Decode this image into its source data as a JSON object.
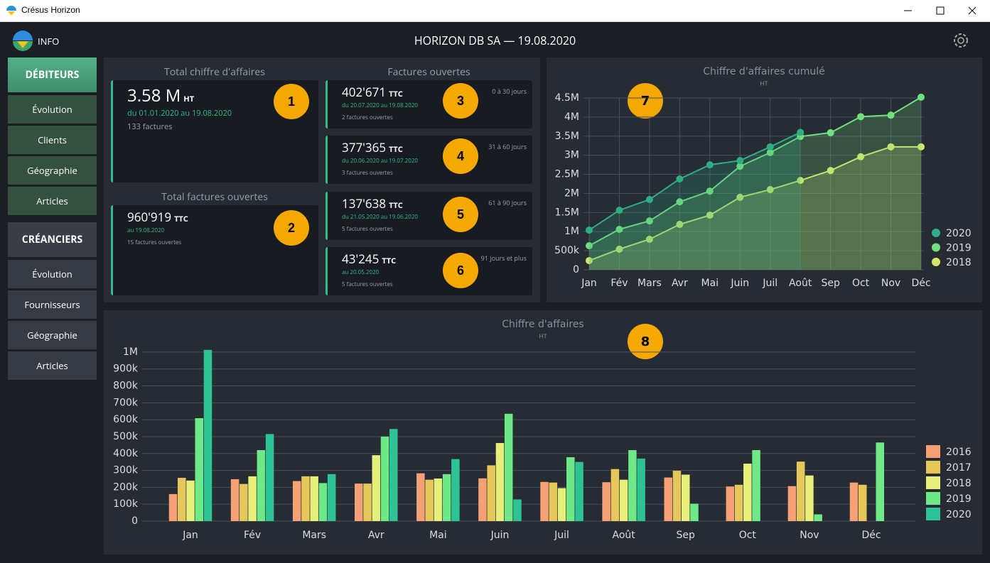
{
  "window": {
    "title": "Crésus Horizon"
  },
  "header": {
    "section": "INFO",
    "title": "HORIZON DB SA — 19.08.2020"
  },
  "sidebar": {
    "debiteurs": {
      "title": "DÉBITEURS",
      "items": [
        "Évolution",
        "Clients",
        "Géographie",
        "Articles"
      ]
    },
    "creanciers": {
      "title": "CRÉANCIERS",
      "items": [
        "Évolution",
        "Fournisseurs",
        "Géographie",
        "Articles"
      ]
    }
  },
  "summary": {
    "revenue": {
      "heading": "Total chiffre d'affaires",
      "amount": "3.58 M",
      "unit": "HT",
      "period": "du 01.01.2020 au 19.08.2020",
      "count": "133 factures",
      "badge": "1"
    },
    "open": {
      "heading": "Total factures ouvertes",
      "amount": "960'919",
      "unit": "TTC",
      "period": "au 19.08.2020",
      "count": "15 factures ouvertes",
      "badge": "2"
    }
  },
  "open_invoices": {
    "heading": "Factures ouvertes",
    "cards": [
      {
        "amount": "402'671",
        "unit": "TTC",
        "period": "du 20.07.2020 au 19.08.2020",
        "count": "2 factures ouvertes",
        "range": "0 à 30 jours",
        "badge": "3"
      },
      {
        "amount": "377'365",
        "unit": "TTC",
        "period": "du 20.06.2020 au 19.07.2020",
        "count": "3 factures ouvertes",
        "range": "31 à 60 jours",
        "badge": "4"
      },
      {
        "amount": "137'638",
        "unit": "TTC",
        "period": "du 21.05.2020 au 19.06.2020",
        "count": "5 factures ouvertes",
        "range": "61 à 90 jours",
        "badge": "5"
      },
      {
        "amount": "43'245",
        "unit": "TTC",
        "period": "au 20.05.2020",
        "count": "5 factures ouvertes",
        "range": "91 jours et plus",
        "badge": "6"
      }
    ]
  },
  "chart_data": [
    {
      "type": "line",
      "title": "Chiffre d'affaires cumulé",
      "subtitle": "HT",
      "annotation": "7",
      "categories": [
        "Jan",
        "Fév",
        "Mars",
        "Avr",
        "Mai",
        "Juin",
        "Juil",
        "Août",
        "Sep",
        "Oct",
        "Nov",
        "Déc"
      ],
      "series": [
        {
          "name": "2020",
          "color": "#2fae84",
          "values": [
            1040000,
            1560000,
            1840000,
            2380000,
            2750000,
            2860000,
            3220000,
            3600000,
            null,
            null,
            null,
            null
          ]
        },
        {
          "name": "2019",
          "color": "#72e07e",
          "values": [
            630000,
            1060000,
            1280000,
            1780000,
            2060000,
            2710000,
            3070000,
            3490000,
            3590000,
            4010000,
            4050000,
            4520000
          ]
        },
        {
          "name": "2018",
          "color": "#d8e56c",
          "values": [
            240000,
            540000,
            800000,
            1190000,
            1430000,
            1900000,
            2100000,
            2340000,
            2600000,
            2960000,
            3220000,
            3220000
          ]
        }
      ],
      "ylim": [
        0,
        4600000
      ],
      "yticks": [
        0,
        {
          "value": 500000,
          "label": "500k"
        },
        {
          "value": 1000000,
          "label": "1M"
        },
        {
          "value": 1500000,
          "label": "1.5M"
        },
        {
          "value": 2000000,
          "label": "2M"
        },
        {
          "value": 2500000,
          "label": "2.5M"
        },
        {
          "value": 3000000,
          "label": "3M"
        },
        {
          "value": 3500000,
          "label": "3.5M"
        },
        {
          "value": 4000000,
          "label": "4M"
        },
        {
          "value": 4500000,
          "label": "4.5M"
        }
      ],
      "grid": true,
      "legend": "right"
    },
    {
      "type": "bar",
      "title": "Chiffre d'affaires",
      "subtitle": "HT",
      "annotation": "8",
      "categories": [
        "Jan",
        "Fév",
        "Mars",
        "Avr",
        "Mai",
        "Juin",
        "Juil",
        "Août",
        "Sep",
        "Oct",
        "Nov",
        "Déc"
      ],
      "series": [
        {
          "name": "2016",
          "color": "#f4a275",
          "values": [
            160000,
            248000,
            237000,
            222000,
            283000,
            253000,
            232000,
            230000,
            258000,
            205000,
            207000,
            228000
          ]
        },
        {
          "name": "2017",
          "color": "#e6c75c",
          "values": [
            256000,
            220000,
            265000,
            222000,
            245000,
            330000,
            228000,
            308000,
            298000,
            215000,
            352000,
            215000
          ]
        },
        {
          "name": "2018",
          "color": "#e6ef7a",
          "values": [
            240000,
            265000,
            265000,
            390000,
            252000,
            462000,
            195000,
            245000,
            275000,
            340000,
            270000,
            null
          ]
        },
        {
          "name": "2019",
          "color": "#6fe887",
          "values": [
            609000,
            420000,
            225000,
            500000,
            278000,
            635000,
            378000,
            420000,
            103000,
            420000,
            40000,
            465000
          ]
        },
        {
          "name": "2020",
          "color": "#2ec395",
          "values": [
            1013000,
            515000,
            278000,
            545000,
            367000,
            128000,
            350000,
            370000,
            null,
            null,
            null,
            null
          ]
        }
      ],
      "ylim": [
        0,
        1050000
      ],
      "yticks": [
        0,
        {
          "value": 100000,
          "label": "100k"
        },
        {
          "value": 200000,
          "label": "200k"
        },
        {
          "value": 300000,
          "label": "300k"
        },
        {
          "value": 400000,
          "label": "400k"
        },
        {
          "value": 500000,
          "label": "500k"
        },
        {
          "value": 600000,
          "label": "600k"
        },
        {
          "value": 700000,
          "label": "700k"
        },
        {
          "value": 800000,
          "label": "800k"
        },
        {
          "value": 900000,
          "label": "900k"
        },
        {
          "value": 1000000,
          "label": "1M"
        }
      ],
      "grid": true,
      "legend": "right"
    }
  ]
}
